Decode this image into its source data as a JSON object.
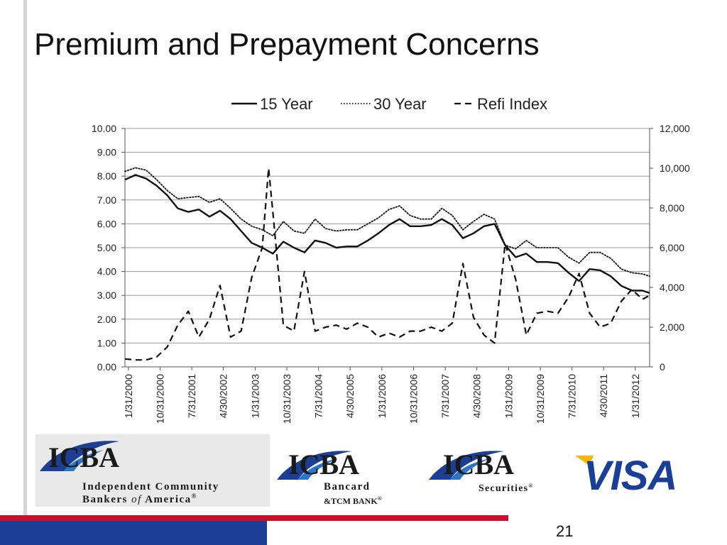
{
  "slide": {
    "title": "Premium and Prepayment Concerns",
    "page_number": "21"
  },
  "logos": {
    "icba_main": {
      "mark": "ICBA",
      "line1": "Independent Community",
      "line2_a": "Bankers ",
      "line2_of": "of",
      "line2_b": " America",
      "reg": "®"
    },
    "icba_bancard": {
      "mark": "ICBA",
      "line1": "Bancard",
      "line2": "&TCM BANK",
      "reg": "®"
    },
    "icba_securities": {
      "mark": "ICBA",
      "line1": "Securities",
      "reg": "®"
    },
    "visa": {
      "text": "VISA"
    }
  },
  "colors": {
    "accent_red": "#c8102e",
    "accent_blue": "#1c3f94",
    "visa_blue": "#1a3f97",
    "visa_gold": "#f7b600",
    "line_black": "#111111",
    "grid": "#9a9a9a"
  },
  "chart_data": {
    "type": "line",
    "title": "",
    "xlabel": "",
    "ylabel": "",
    "grid": true,
    "legend_position": "top",
    "x_ticks": [
      "1/31/2000",
      "10/31/2000",
      "7/31/2001",
      "4/30/2002",
      "1/31/2003",
      "10/31/2003",
      "7/31/2004",
      "4/30/2005",
      "1/31/2006",
      "10/31/2006",
      "7/31/2007",
      "4/30/2008",
      "1/31/2009",
      "10/31/2009",
      "7/31/2010",
      "4/30/2011",
      "1/31/2012"
    ],
    "x_range": [
      "1/31/2000",
      "5/31/2012"
    ],
    "y_left": {
      "range": [
        0,
        10
      ],
      "ticks": [
        "0.00",
        "1.00",
        "2.00",
        "3.00",
        "4.00",
        "5.00",
        "6.00",
        "7.00",
        "8.00",
        "9.00",
        "10.00"
      ]
    },
    "y_right": {
      "range": [
        0,
        12000
      ],
      "ticks": [
        "0",
        "2,000",
        "4,000",
        "6,000",
        "8,000",
        "10,000",
        "12,000"
      ]
    },
    "series": [
      {
        "name": "15 Year",
        "axis": "left",
        "style": "solid",
        "points": [
          [
            2000.0,
            7.85
          ],
          [
            2000.25,
            8.05
          ],
          [
            2000.5,
            7.9
          ],
          [
            2000.75,
            7.6
          ],
          [
            2001.0,
            7.2
          ],
          [
            2001.25,
            6.65
          ],
          [
            2001.5,
            6.5
          ],
          [
            2001.75,
            6.6
          ],
          [
            2002.0,
            6.3
          ],
          [
            2002.25,
            6.55
          ],
          [
            2002.5,
            6.2
          ],
          [
            2002.75,
            5.7
          ],
          [
            2003.0,
            5.2
          ],
          [
            2003.25,
            5.0
          ],
          [
            2003.5,
            4.75
          ],
          [
            2003.75,
            5.25
          ],
          [
            2004.0,
            5.0
          ],
          [
            2004.25,
            4.8
          ],
          [
            2004.5,
            5.3
          ],
          [
            2004.75,
            5.2
          ],
          [
            2005.0,
            5.0
          ],
          [
            2005.25,
            5.05
          ],
          [
            2005.5,
            5.05
          ],
          [
            2005.75,
            5.3
          ],
          [
            2006.0,
            5.6
          ],
          [
            2006.25,
            5.95
          ],
          [
            2006.5,
            6.2
          ],
          [
            2006.75,
            5.9
          ],
          [
            2007.0,
            5.9
          ],
          [
            2007.25,
            5.95
          ],
          [
            2007.5,
            6.2
          ],
          [
            2007.75,
            5.95
          ],
          [
            2008.0,
            5.4
          ],
          [
            2008.25,
            5.6
          ],
          [
            2008.5,
            5.9
          ],
          [
            2008.75,
            6.0
          ],
          [
            2009.0,
            5.1
          ],
          [
            2009.25,
            4.6
          ],
          [
            2009.5,
            4.75
          ],
          [
            2009.75,
            4.4
          ],
          [
            2010.0,
            4.4
          ],
          [
            2010.25,
            4.35
          ],
          [
            2010.5,
            3.95
          ],
          [
            2010.75,
            3.6
          ],
          [
            2011.0,
            4.1
          ],
          [
            2011.25,
            4.05
          ],
          [
            2011.5,
            3.8
          ],
          [
            2011.75,
            3.4
          ],
          [
            2012.0,
            3.2
          ],
          [
            2012.25,
            3.2
          ],
          [
            2012.42,
            3.1
          ]
        ]
      },
      {
        "name": "30 Year",
        "axis": "left",
        "style": "dotted",
        "points": [
          [
            2000.0,
            8.2
          ],
          [
            2000.25,
            8.35
          ],
          [
            2000.5,
            8.25
          ],
          [
            2000.75,
            7.85
          ],
          [
            2001.0,
            7.4
          ],
          [
            2001.25,
            7.05
          ],
          [
            2001.5,
            7.1
          ],
          [
            2001.75,
            7.15
          ],
          [
            2002.0,
            6.9
          ],
          [
            2002.25,
            7.05
          ],
          [
            2002.5,
            6.65
          ],
          [
            2002.75,
            6.2
          ],
          [
            2003.0,
            5.9
          ],
          [
            2003.25,
            5.75
          ],
          [
            2003.5,
            5.5
          ],
          [
            2003.75,
            6.1
          ],
          [
            2004.0,
            5.7
          ],
          [
            2004.25,
            5.6
          ],
          [
            2004.5,
            6.2
          ],
          [
            2004.75,
            5.8
          ],
          [
            2005.0,
            5.7
          ],
          [
            2005.25,
            5.75
          ],
          [
            2005.5,
            5.75
          ],
          [
            2005.75,
            6.0
          ],
          [
            2006.0,
            6.25
          ],
          [
            2006.25,
            6.6
          ],
          [
            2006.5,
            6.75
          ],
          [
            2006.75,
            6.35
          ],
          [
            2007.0,
            6.2
          ],
          [
            2007.25,
            6.2
          ],
          [
            2007.5,
            6.65
          ],
          [
            2007.75,
            6.35
          ],
          [
            2008.0,
            5.75
          ],
          [
            2008.25,
            6.1
          ],
          [
            2008.5,
            6.4
          ],
          [
            2008.75,
            6.2
          ],
          [
            2009.0,
            5.1
          ],
          [
            2009.25,
            4.95
          ],
          [
            2009.5,
            5.3
          ],
          [
            2009.75,
            5.0
          ],
          [
            2010.0,
            5.0
          ],
          [
            2010.25,
            5.0
          ],
          [
            2010.5,
            4.6
          ],
          [
            2010.75,
            4.35
          ],
          [
            2011.0,
            4.8
          ],
          [
            2011.25,
            4.8
          ],
          [
            2011.5,
            4.55
          ],
          [
            2011.75,
            4.1
          ],
          [
            2012.0,
            3.95
          ],
          [
            2012.25,
            3.9
          ],
          [
            2012.42,
            3.8
          ]
        ]
      },
      {
        "name": "Refi Index",
        "axis": "right",
        "style": "dashed",
        "points": [
          [
            2000.0,
            400
          ],
          [
            2000.25,
            350
          ],
          [
            2000.5,
            350
          ],
          [
            2000.75,
            500
          ],
          [
            2001.0,
            1000
          ],
          [
            2001.25,
            2100
          ],
          [
            2001.5,
            2800
          ],
          [
            2001.75,
            1500
          ],
          [
            2002.0,
            2400
          ],
          [
            2002.25,
            4100
          ],
          [
            2002.5,
            1500
          ],
          [
            2002.75,
            1800
          ],
          [
            2003.0,
            4500
          ],
          [
            2003.25,
            6000
          ],
          [
            2003.4,
            10000
          ],
          [
            2003.5,
            7800
          ],
          [
            2003.75,
            2100
          ],
          [
            2004.0,
            1800
          ],
          [
            2004.25,
            4800
          ],
          [
            2004.5,
            1800
          ],
          [
            2004.75,
            2000
          ],
          [
            2005.0,
            2100
          ],
          [
            2005.25,
            1900
          ],
          [
            2005.5,
            2200
          ],
          [
            2005.75,
            2000
          ],
          [
            2006.0,
            1500
          ],
          [
            2006.25,
            1700
          ],
          [
            2006.5,
            1500
          ],
          [
            2006.75,
            1800
          ],
          [
            2007.0,
            1800
          ],
          [
            2007.25,
            2000
          ],
          [
            2007.5,
            1800
          ],
          [
            2007.75,
            2200
          ],
          [
            2008.0,
            5200
          ],
          [
            2008.25,
            2500
          ],
          [
            2008.5,
            1600
          ],
          [
            2008.75,
            1200
          ],
          [
            2009.0,
            6200
          ],
          [
            2009.25,
            4400
          ],
          [
            2009.5,
            1600
          ],
          [
            2009.75,
            2700
          ],
          [
            2010.0,
            2800
          ],
          [
            2010.25,
            2700
          ],
          [
            2010.5,
            3500
          ],
          [
            2010.75,
            4700
          ],
          [
            2011.0,
            2700
          ],
          [
            2011.25,
            2000
          ],
          [
            2011.5,
            2200
          ],
          [
            2011.75,
            3300
          ],
          [
            2012.0,
            3900
          ],
          [
            2012.25,
            3400
          ],
          [
            2012.42,
            3600
          ]
        ]
      }
    ]
  }
}
